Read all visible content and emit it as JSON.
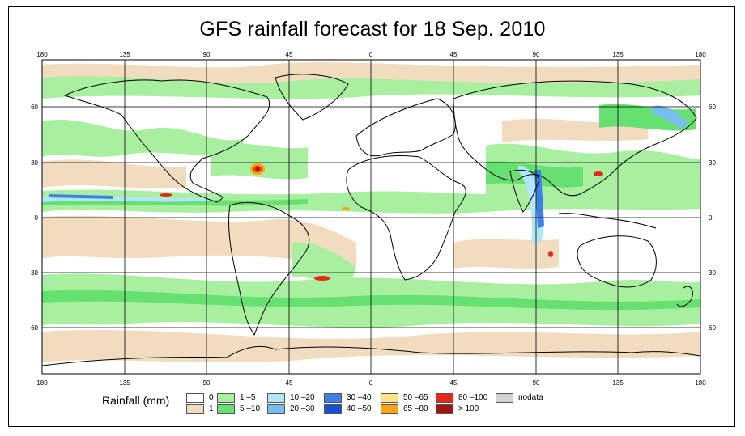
{
  "title": "GFS rainfall forecast for 18 Sep. 2010",
  "top_ticks": [
    "180",
    "135",
    "90",
    "45",
    "0",
    "45",
    "90",
    "135",
    "180"
  ],
  "bottom_ticks": [
    "180",
    "135",
    "90",
    "45",
    "0",
    "45",
    "90",
    "135",
    "180"
  ],
  "lat_ticks_left": [
    "60",
    "30",
    "0",
    "30",
    "60"
  ],
  "lat_ticks_right": [
    "60",
    "30",
    "0",
    "30",
    "60"
  ],
  "legend": {
    "title": "Rainfall (mm)",
    "items": [
      {
        "label": "0",
        "color": "#ffffff"
      },
      {
        "label": "1",
        "color": "#f2dcc0"
      },
      {
        "label": "1 –5",
        "color": "#a8efa0"
      },
      {
        "label": "5 –10",
        "color": "#66e070"
      },
      {
        "label": "10 –20",
        "color": "#b0e6f8"
      },
      {
        "label": "20 –30",
        "color": "#78bdf0"
      },
      {
        "label": "30 –40",
        "color": "#3c82e6"
      },
      {
        "label": "40 –50",
        "color": "#1450d2"
      },
      {
        "label": "50 –65",
        "color": "#fae688"
      },
      {
        "label": "65 –80",
        "color": "#faa414"
      },
      {
        "label": "80 –100",
        "color": "#e62814"
      },
      {
        "label": "> 100",
        "color": "#a01414"
      },
      {
        "label": "nodata",
        "color": "#d2d2d2"
      }
    ]
  }
}
